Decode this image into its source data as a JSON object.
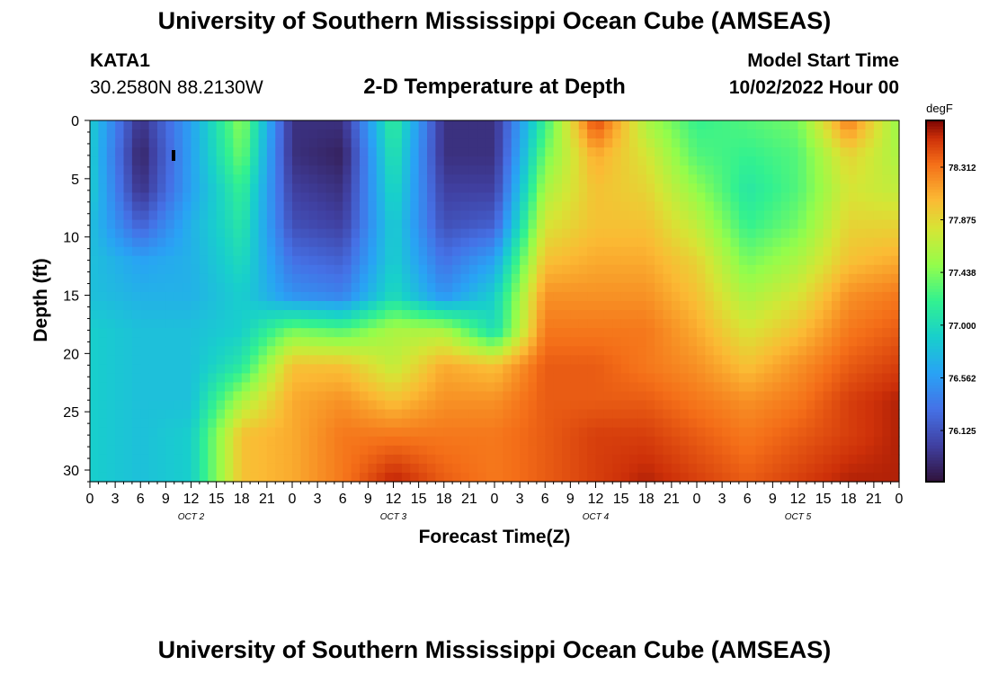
{
  "header": {
    "title": "University of Southern Mississippi Ocean Cube (AMSEAS)",
    "station": "KATA1",
    "location": "30.2580N  88.2130W",
    "subtitle": "2-D Temperature at Depth",
    "model_start_label": "Model Start Time",
    "model_start_value": "10/02/2022 Hour 00"
  },
  "footer": {
    "title": "University of Southern Mississippi Ocean Cube (AMSEAS)"
  },
  "chart_data": {
    "type": "heatmap",
    "title": "2-D Temperature at Depth",
    "xlabel": "Forecast Time(Z)",
    "ylabel": "Depth (ft)",
    "ylim": [
      0,
      31
    ],
    "y_ticks": [
      0,
      5,
      10,
      15,
      20,
      25,
      30
    ],
    "x_ticks": [
      "0",
      "3",
      "6",
      "9",
      "12",
      "15",
      "18",
      "21",
      "0",
      "3",
      "6",
      "9",
      "12",
      "15",
      "18",
      "21",
      "0",
      "3",
      "6",
      "9",
      "12",
      "15",
      "18",
      "21",
      "0",
      "3",
      "6",
      "9",
      "12",
      "15",
      "18",
      "21",
      "0"
    ],
    "x_hours_range": [
      0,
      96
    ],
    "date_labels": [
      {
        "label": "OCT 2",
        "hour": 12
      },
      {
        "label": "OCT 3",
        "hour": 36
      },
      {
        "label": "OCT 4",
        "hour": 60
      },
      {
        "label": "OCT 5",
        "hour": 84
      }
    ],
    "colorbar": {
      "unit": "degF",
      "min": 75.7,
      "max": 78.7,
      "ticks": [
        "78.312",
        "77.875",
        "77.438",
        "77.000",
        "76.562",
        "76.125"
      ]
    },
    "grid": {
      "hours": [
        0,
        6,
        12,
        18,
        24,
        30,
        36,
        42,
        48,
        54,
        60,
        66,
        72,
        78,
        84,
        90,
        96
      ],
      "depths": [
        0,
        3,
        6,
        9,
        12,
        15,
        18,
        21,
        24,
        27,
        31
      ],
      "temperature": [
        [
          76.9,
          75.9,
          76.6,
          77.5,
          75.9,
          75.9,
          77.2,
          75.9,
          75.9,
          77.2,
          78.5,
          77.6,
          77.2,
          77.3,
          77.4,
          78.3,
          77.5
        ],
        [
          76.9,
          75.8,
          76.6,
          77.4,
          75.9,
          75.8,
          77.1,
          75.9,
          75.9,
          77.4,
          78.1,
          77.8,
          77.3,
          77.2,
          77.3,
          77.9,
          77.6
        ],
        [
          76.9,
          75.9,
          76.6,
          77.2,
          76.0,
          75.9,
          77.0,
          76.0,
          76.0,
          77.6,
          78.0,
          77.9,
          77.5,
          77.1,
          77.3,
          77.8,
          77.7
        ],
        [
          76.8,
          76.2,
          76.7,
          77.1,
          76.1,
          76.0,
          76.9,
          76.1,
          76.2,
          77.8,
          78.0,
          78.0,
          77.7,
          77.2,
          77.4,
          77.9,
          77.9
        ],
        [
          76.8,
          76.6,
          76.7,
          77.0,
          76.3,
          76.2,
          76.9,
          76.3,
          76.6,
          78.0,
          78.1,
          78.1,
          77.9,
          77.4,
          77.6,
          78.0,
          78.1
        ],
        [
          76.8,
          76.7,
          76.7,
          76.9,
          76.5,
          76.4,
          77.0,
          76.5,
          76.9,
          78.2,
          78.2,
          78.2,
          78.0,
          77.6,
          77.8,
          78.2,
          78.3
        ],
        [
          76.9,
          76.8,
          76.8,
          76.9,
          77.4,
          77.3,
          77.6,
          77.6,
          77.0,
          78.3,
          78.3,
          78.3,
          78.1,
          77.8,
          78.0,
          78.3,
          78.4
        ],
        [
          76.9,
          76.8,
          76.8,
          77.1,
          78.0,
          78.0,
          77.7,
          78.1,
          78.0,
          78.4,
          78.4,
          78.3,
          78.2,
          78.0,
          78.2,
          78.4,
          78.5
        ],
        [
          76.9,
          76.8,
          76.8,
          77.6,
          78.1,
          78.2,
          78.0,
          78.2,
          78.2,
          78.4,
          78.4,
          78.4,
          78.3,
          78.2,
          78.3,
          78.5,
          78.6
        ],
        [
          76.9,
          76.8,
          76.9,
          78.0,
          78.1,
          78.3,
          78.3,
          78.3,
          78.3,
          78.4,
          78.5,
          78.5,
          78.4,
          78.3,
          78.4,
          78.5,
          78.6
        ],
        [
          76.9,
          76.8,
          76.9,
          78.0,
          78.1,
          78.3,
          78.6,
          78.4,
          78.3,
          78.4,
          78.5,
          78.6,
          78.5,
          78.4,
          78.5,
          78.6,
          78.6
        ]
      ]
    }
  }
}
